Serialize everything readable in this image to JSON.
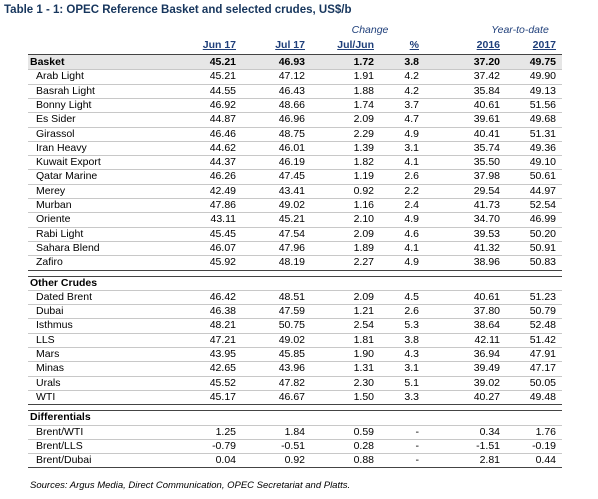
{
  "title": "Table 1 - 1: OPEC Reference Basket and selected crudes, US$/b",
  "header_groups": [
    "Change",
    "Year-to-date"
  ],
  "columns": [
    "Jun 17",
    "Jul 17",
    "Jul/Jun",
    "%",
    "2016",
    "2017"
  ],
  "sections": [
    {
      "rows": [
        [
          "Basket",
          "45.21",
          "46.93",
          "1.72",
          "3.8",
          "37.20",
          "49.75"
        ],
        [
          "Arab Light",
          "45.21",
          "47.12",
          "1.91",
          "4.2",
          "37.42",
          "49.90"
        ],
        [
          "Basrah Light",
          "44.55",
          "46.43",
          "1.88",
          "4.2",
          "35.84",
          "49.13"
        ],
        [
          "Bonny Light",
          "46.92",
          "48.66",
          "1.74",
          "3.7",
          "40.61",
          "51.56"
        ],
        [
          "Es Sider",
          "44.87",
          "46.96",
          "2.09",
          "4.7",
          "39.61",
          "49.68"
        ],
        [
          "Girassol",
          "46.46",
          "48.75",
          "2.29",
          "4.9",
          "40.41",
          "51.31"
        ],
        [
          "Iran Heavy",
          "44.62",
          "46.01",
          "1.39",
          "3.1",
          "35.74",
          "49.36"
        ],
        [
          "Kuwait Export",
          "44.37",
          "46.19",
          "1.82",
          "4.1",
          "35.50",
          "49.10"
        ],
        [
          "Qatar Marine",
          "46.26",
          "47.45",
          "1.19",
          "2.6",
          "37.98",
          "50.61"
        ],
        [
          "Merey",
          "42.49",
          "43.41",
          "0.92",
          "2.2",
          "29.54",
          "44.97"
        ],
        [
          "Murban",
          "47.86",
          "49.02",
          "1.16",
          "2.4",
          "41.73",
          "52.54"
        ],
        [
          "Oriente",
          "43.11",
          "45.21",
          "2.10",
          "4.9",
          "34.70",
          "46.99"
        ],
        [
          "Rabi Light",
          "45.45",
          "47.54",
          "2.09",
          "4.6",
          "39.53",
          "50.20"
        ],
        [
          "Sahara Blend",
          "46.07",
          "47.96",
          "1.89",
          "4.1",
          "41.32",
          "50.91"
        ],
        [
          "Zafiro",
          "45.92",
          "48.19",
          "2.27",
          "4.9",
          "38.96",
          "50.83"
        ]
      ]
    },
    {
      "heading": "Other Crudes",
      "rows": [
        [
          "Dated Brent",
          "46.42",
          "48.51",
          "2.09",
          "4.5",
          "40.61",
          "51.23"
        ],
        [
          "Dubai",
          "46.38",
          "47.59",
          "1.21",
          "2.6",
          "37.80",
          "50.79"
        ],
        [
          "Isthmus",
          "48.21",
          "50.75",
          "2.54",
          "5.3",
          "38.64",
          "52.48"
        ],
        [
          "LLS",
          "47.21",
          "49.02",
          "1.81",
          "3.8",
          "42.11",
          "51.42"
        ],
        [
          "Mars",
          "43.95",
          "45.85",
          "1.90",
          "4.3",
          "36.94",
          "47.91"
        ],
        [
          "Minas",
          "42.65",
          "43.96",
          "1.31",
          "3.1",
          "39.49",
          "47.17"
        ],
        [
          "Urals",
          "45.52",
          "47.82",
          "2.30",
          "5.1",
          "39.02",
          "50.05"
        ],
        [
          "WTI",
          "45.17",
          "46.67",
          "1.50",
          "3.3",
          "40.27",
          "49.48"
        ]
      ]
    },
    {
      "heading": "Differentials",
      "rows": [
        [
          "Brent/WTI",
          "1.25",
          "1.84",
          "0.59",
          "-",
          "0.34",
          "1.76"
        ],
        [
          "Brent/LLS",
          "-0.79",
          "-0.51",
          "0.28",
          "-",
          "-1.51",
          "-0.19"
        ],
        [
          "Brent/Dubai",
          "0.04",
          "0.92",
          "0.88",
          "-",
          "2.81",
          "0.44"
        ]
      ]
    }
  ],
  "source": "Sources: Argus Media, Direct Communication, OPEC Secretariat and Platts."
}
